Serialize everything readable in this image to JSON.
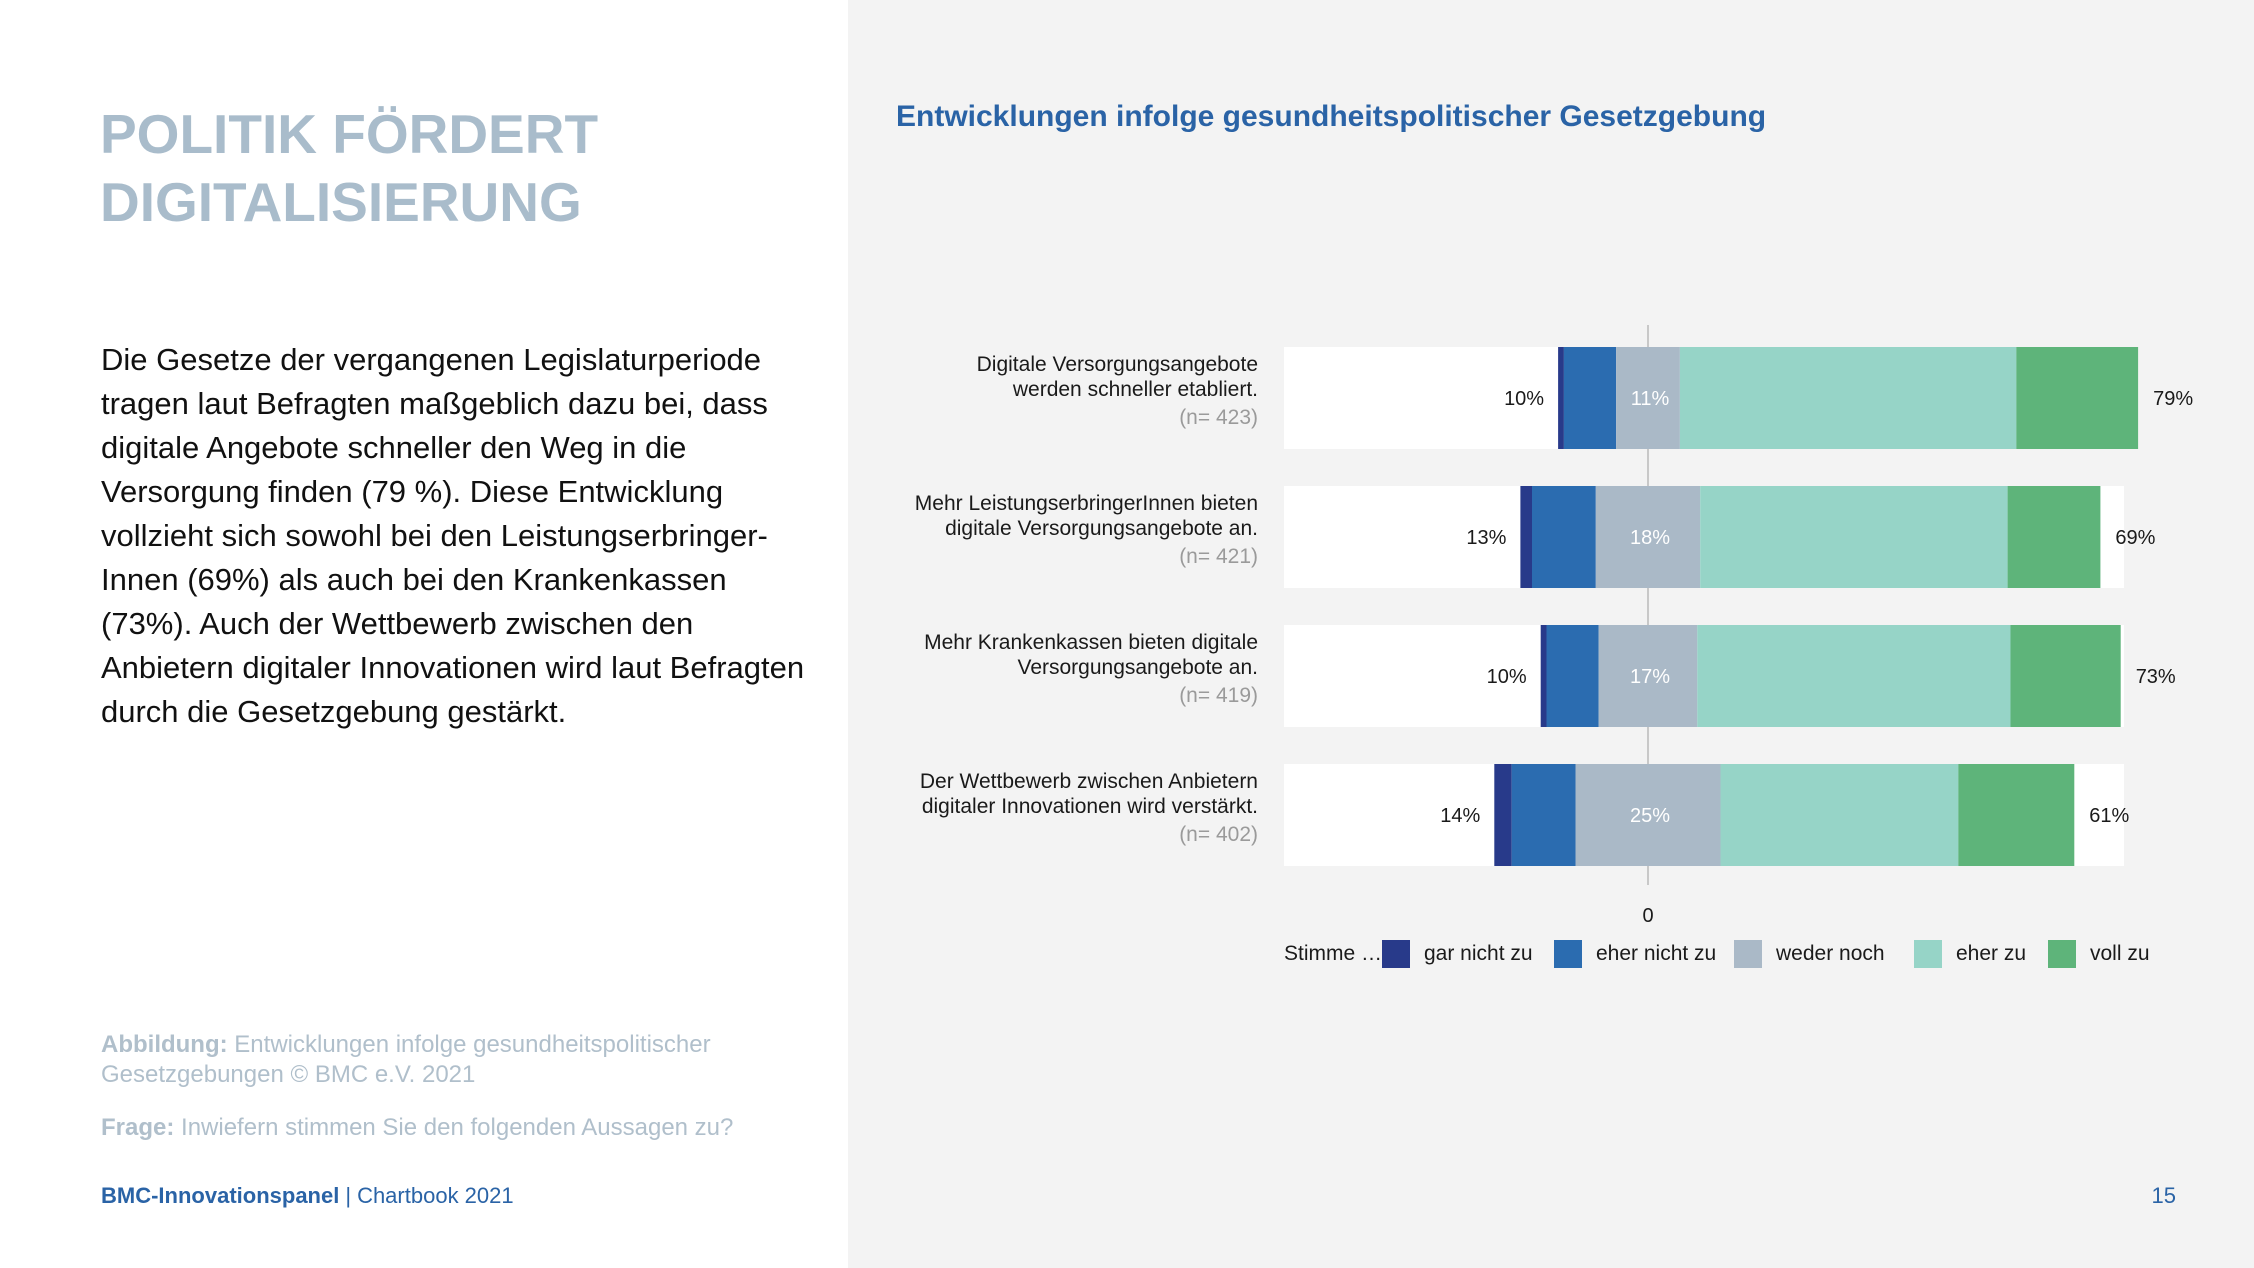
{
  "page": {
    "title_lines": [
      "POLITIK FÖRDERT",
      "DIGITALISIERUNG"
    ],
    "body": "Die Gesetze der vergangenen Legislaturperiode tragen laut Befragten maßgeblich dazu bei, dass digitale Angebote schneller den Weg in die Versorgung finden (79 %). Diese Entwicklung vollzieht sich sowohl bei den Leistungserbringer-Innen (69%) als auch bei den Krankenkassen (73%). Auch der Wettbewerb zwischen den Anbietern digitaler Innovationen wird laut Befragten durch die Gesetzgebung gestärkt.",
    "caption_label": "Abbildung:",
    "caption_text": " Entwicklungen infolge gesundheitspolitischer Gesetzgebungen © BMC e.V. 2021",
    "question_label": "Frage:",
    "question_text": " Inwiefern stimmen Sie den folgenden Aussagen zu?",
    "footer_brand": "BMC-Innovationspanel",
    "footer_separator": "|",
    "footer_doc": "Chartbook 2021",
    "page_number": "15"
  },
  "chart_data": {
    "type": "bar",
    "orientation": "horizontal",
    "stacked": "diverging",
    "title": "Entwicklungen infolge gesundheitspolitischer Gesetzgebung",
    "zero_label": "0",
    "legend_prefix": "Stimme …",
    "legend_position": "bottom",
    "series": [
      {
        "name": "gar nicht zu",
        "color": "#283a8a"
      },
      {
        "name": "eher nicht zu",
        "color": "#2b6cb0"
      },
      {
        "name": "weder noch",
        "color": "#aab9c7"
      },
      {
        "name": "eher zu",
        "color": "#96d4c7"
      },
      {
        "name": "voll zu",
        "color": "#5eb47a"
      }
    ],
    "categories": [
      {
        "label_lines": [
          "Digitale Versorgungsangebote",
          "werden schneller etabliert."
        ],
        "n": "(n= 423)",
        "values": [
          1,
          9,
          11,
          58,
          21
        ],
        "disagree_label": "10%",
        "neutral_label": "11%",
        "agree_label": "79%"
      },
      {
        "label_lines": [
          "Mehr LeistungserbringerInnen bieten",
          "digitale Versorgungsangebote an."
        ],
        "n": "(n= 421)",
        "values": [
          2,
          11,
          18,
          53,
          16
        ],
        "disagree_label": "13%",
        "neutral_label": "18%",
        "agree_label": "69%"
      },
      {
        "label_lines": [
          "Mehr Krankenkassen bieten digitale",
          "Versorgungsangebote an."
        ],
        "n": "(n= 419)",
        "values": [
          1,
          9,
          17,
          54,
          19
        ],
        "disagree_label": "10%",
        "neutral_label": "17%",
        "agree_label": "73%"
      },
      {
        "label_lines": [
          "Der  Wettbewerb zwischen Anbietern",
          "digitaler Innovationen  wird verstärkt."
        ],
        "n": "(n= 402)",
        "values": [
          3,
          11,
          25,
          41,
          20
        ],
        "disagree_label": "14%",
        "neutral_label": "25%",
        "agree_label": "61%"
      }
    ]
  }
}
